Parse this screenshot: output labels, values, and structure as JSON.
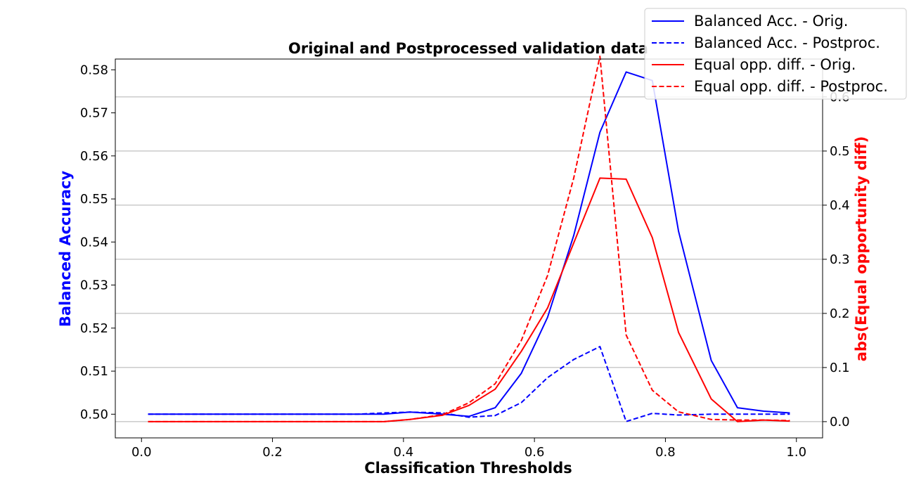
{
  "chart_data": {
    "type": "line",
    "title": "Original and Postprocessed validation data",
    "xlabel": "Classification Thresholds",
    "ylabel_left": "Balanced Accuracy",
    "ylabel_right": "abs(Equal opportunity diff)",
    "ylabel_left_color": "#0000ff",
    "ylabel_right_color": "#ff0000",
    "xlim": [
      -0.04,
      1.04
    ],
    "ylim_left": [
      0.4945,
      0.5825
    ],
    "ylim_right": [
      -0.03,
      0.67
    ],
    "x_ticks": [
      0.0,
      0.2,
      0.4,
      0.6,
      0.8,
      1.0
    ],
    "x_tick_labels": [
      "0.0",
      "0.2",
      "0.4",
      "0.6",
      "0.8",
      "1.0"
    ],
    "y_left_ticks": [
      0.5,
      0.51,
      0.52,
      0.53,
      0.54,
      0.55,
      0.56,
      0.57,
      0.58
    ],
    "y_left_tick_labels": [
      "0.50",
      "0.51",
      "0.52",
      "0.53",
      "0.54",
      "0.55",
      "0.56",
      "0.57",
      "0.58"
    ],
    "y_right_ticks": [
      0.0,
      0.1,
      0.2,
      0.3,
      0.4,
      0.5,
      0.6
    ],
    "y_right_tick_labels": [
      "0.0",
      "0.1",
      "0.2",
      "0.3",
      "0.4",
      "0.5",
      "0.6"
    ],
    "grid": "horizontal-right-axis",
    "legend_position": "top-right",
    "x": [
      0.01,
      0.05,
      0.09,
      0.13,
      0.17,
      0.21,
      0.25,
      0.29,
      0.33,
      0.37,
      0.41,
      0.46,
      0.5,
      0.54,
      0.58,
      0.62,
      0.66,
      0.7,
      0.74,
      0.78,
      0.82,
      0.87,
      0.91,
      0.95,
      0.99
    ],
    "series": [
      {
        "name": "Balanced Acc. - Orig.",
        "axis": "left",
        "color": "#0000ff",
        "dash": "solid",
        "values": [
          0.5,
          0.5,
          0.5,
          0.5,
          0.5,
          0.5,
          0.5,
          0.5,
          0.5,
          0.5,
          0.5005,
          0.5,
          0.4995,
          0.5015,
          0.5095,
          0.5225,
          0.5415,
          0.5655,
          0.5795,
          0.5775,
          0.5425,
          0.5125,
          0.5015,
          0.5007,
          0.5003
        ]
      },
      {
        "name": "Balanced Acc. - Postproc.",
        "axis": "left",
        "color": "#0000ff",
        "dash": "dashed",
        "values": [
          0.5,
          0.5,
          0.5,
          0.5,
          0.5,
          0.5,
          0.5,
          0.5,
          0.5,
          0.5003,
          0.5005,
          0.5003,
          0.4993,
          0.4997,
          0.5027,
          0.5085,
          0.5127,
          0.5157,
          0.4983,
          0.5002,
          0.4998,
          0.5,
          0.5,
          0.5,
          0.5
        ]
      },
      {
        "name": "Equal opp. diff. - Orig.",
        "axis": "right",
        "color": "#ff0000",
        "dash": "solid",
        "values": [
          0.0,
          0.0,
          0.0,
          0.0,
          0.0,
          0.0,
          0.0,
          0.0,
          0.0,
          0.0,
          0.004,
          0.012,
          0.03,
          0.06,
          0.13,
          0.21,
          0.33,
          0.45,
          0.448,
          0.34,
          0.165,
          0.042,
          0.0,
          0.003,
          0.001
        ]
      },
      {
        "name": "Equal opp. diff. - Postproc.",
        "axis": "right",
        "color": "#ff0000",
        "dash": "dashed",
        "values": [
          0.0,
          0.0,
          0.0,
          0.0,
          0.0,
          0.0,
          0.0,
          0.0,
          0.0,
          0.0,
          0.004,
          0.013,
          0.035,
          0.07,
          0.15,
          0.27,
          0.45,
          0.675,
          0.16,
          0.058,
          0.018,
          0.004,
          0.003,
          0.003,
          0.002
        ]
      }
    ]
  }
}
